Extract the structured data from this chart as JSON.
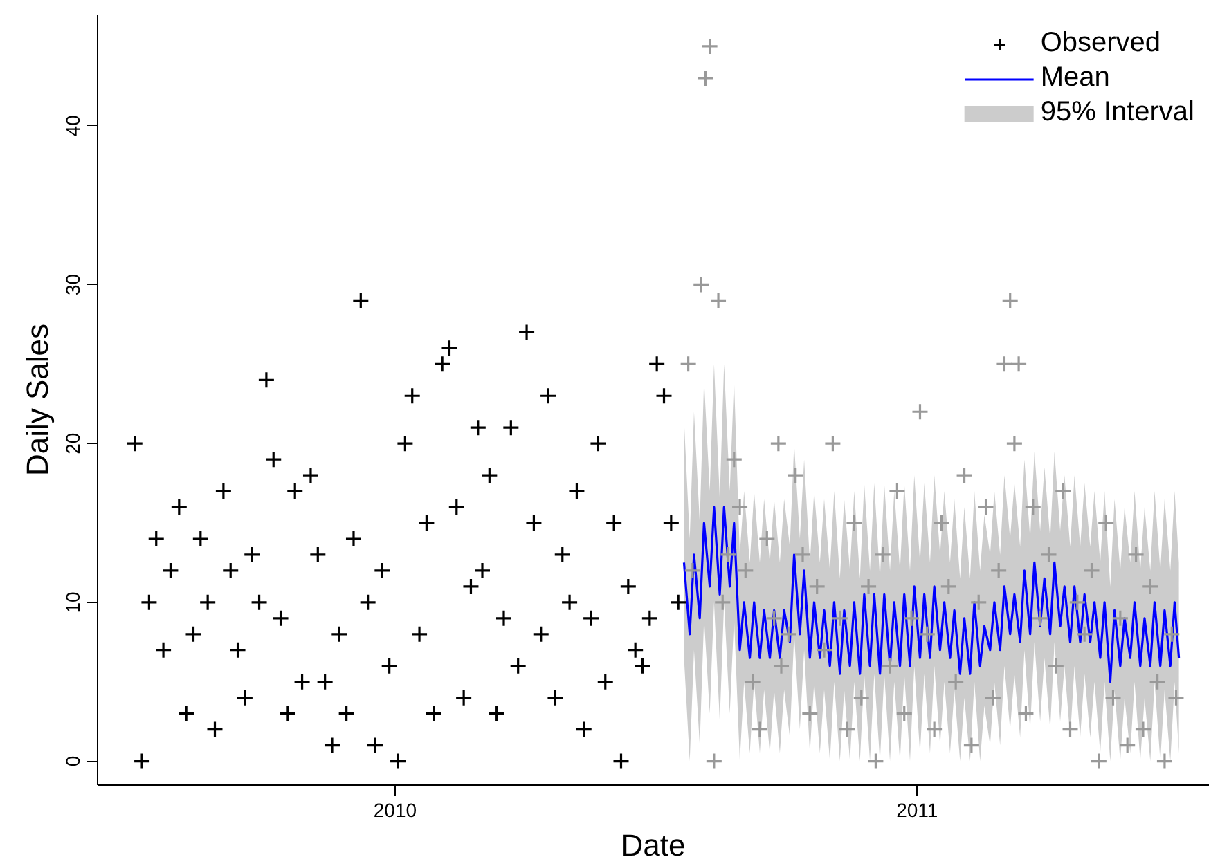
{
  "chart_data": {
    "type": "scatter",
    "xlabel": "Date",
    "ylabel": "Daily Sales",
    "xlim": [
      "2009-06-07",
      "2011-07-24"
    ],
    "ylim": [
      -1.5,
      47
    ],
    "xticks": [
      {
        "value": "2010-01-01",
        "label": "2010"
      },
      {
        "value": "2011-01-01",
        "label": "2011"
      }
    ],
    "yticks": [
      0,
      10,
      20,
      30,
      40
    ],
    "grid": false,
    "legend": "top right",
    "marker": "cross",
    "series": [
      {
        "name": "Mean",
        "type": "line",
        "color": "#0000ff",
        "line_style": "solid",
        "marker": "none",
        "x": [
          "2010-07-22",
          "2010-07-26",
          "2010-07-29",
          "2010-08-02",
          "2010-08-05",
          "2010-08-09",
          "2010-08-12",
          "2010-08-16",
          "2010-08-19",
          "2010-08-23",
          "2010-08-26",
          "2010-08-30",
          "2010-09-02",
          "2010-09-06",
          "2010-09-09",
          "2010-09-13",
          "2010-09-16",
          "2010-09-20",
          "2010-09-23",
          "2010-09-27",
          "2010-09-30",
          "2010-10-04",
          "2010-10-07",
          "2010-10-11",
          "2010-10-14",
          "2010-10-18",
          "2010-10-21",
          "2010-10-25",
          "2010-10-28",
          "2010-11-01",
          "2010-11-04",
          "2010-11-08",
          "2010-11-11",
          "2010-11-15",
          "2010-11-18",
          "2010-11-22",
          "2010-11-25",
          "2010-11-29",
          "2010-12-02",
          "2010-12-06",
          "2010-12-09",
          "2010-12-13",
          "2010-12-16",
          "2010-12-20",
          "2010-12-23",
          "2010-12-27",
          "2010-12-30",
          "2011-01-03",
          "2011-01-06",
          "2011-01-10",
          "2011-01-13",
          "2011-01-17",
          "2011-01-20",
          "2011-01-24",
          "2011-01-27",
          "2011-01-31",
          "2011-02-03",
          "2011-02-07",
          "2011-02-10",
          "2011-02-14",
          "2011-02-17",
          "2011-02-21",
          "2011-02-24",
          "2011-02-28",
          "2011-03-03",
          "2011-03-07",
          "2011-03-10",
          "2011-03-14",
          "2011-03-17",
          "2011-03-21",
          "2011-03-24",
          "2011-03-28",
          "2011-03-31",
          "2011-04-04",
          "2011-04-07",
          "2011-04-11",
          "2011-04-14",
          "2011-04-18",
          "2011-04-21",
          "2011-04-25",
          "2011-04-28",
          "2011-05-02",
          "2011-05-05",
          "2011-05-09",
          "2011-05-12",
          "2011-05-16",
          "2011-05-19",
          "2011-05-23",
          "2011-05-26",
          "2011-05-30",
          "2011-06-02",
          "2011-06-06",
          "2011-06-09",
          "2011-06-13",
          "2011-06-16",
          "2011-06-20",
          "2011-06-23",
          "2011-06-27",
          "2011-06-30",
          "2011-07-03"
        ],
        "upper": [
          21.5,
          14,
          22,
          15,
          24,
          17,
          25,
          16.5,
          25,
          17,
          24,
          13,
          17,
          12.5,
          17,
          12.5,
          16.5,
          12.5,
          16.5,
          12.5,
          16.5,
          13.5,
          20,
          14,
          19,
          12.5,
          17,
          12.5,
          16.5,
          12,
          17,
          11.5,
          16.5,
          12,
          17,
          11.5,
          17.5,
          12,
          17.5,
          11.5,
          17.5,
          12,
          17,
          12,
          17.5,
          12,
          18,
          12.5,
          17.5,
          12.5,
          18,
          13,
          17,
          12.5,
          16.5,
          11.5,
          16,
          11.5,
          17,
          12,
          15.5,
          13,
          17,
          13,
          18,
          14,
          17.5,
          13.5,
          19,
          14,
          19.5,
          14.5,
          18.5,
          14,
          19.5,
          14.5,
          18,
          13.5,
          18,
          13.5,
          17.5,
          13.5,
          17,
          12.5,
          17,
          11,
          16.5,
          12,
          16,
          12.5,
          17,
          12,
          16,
          12,
          17,
          12,
          16.5,
          12,
          17,
          12.5
        ],
        "lower": [
          6.5,
          0,
          7,
          1,
          9,
          3,
          10,
          2.5,
          10,
          3,
          9,
          0,
          5,
          0.5,
          5,
          0.5,
          4.5,
          0.5,
          4.5,
          0.5,
          4.5,
          1.5,
          8,
          2,
          7,
          0.5,
          5,
          0.5,
          4.5,
          0,
          5,
          0,
          4.5,
          0,
          5,
          0,
          5.5,
          0,
          5.5,
          0,
          5.5,
          0,
          5,
          0,
          5.5,
          0,
          6,
          0.5,
          5.5,
          0.5,
          6,
          1,
          5,
          0.5,
          4.5,
          0,
          4,
          0,
          5,
          0,
          3.5,
          1,
          5,
          1,
          6,
          2,
          5.5,
          1.5,
          7,
          2,
          7.5,
          2.5,
          6.5,
          2,
          7.5,
          2.5,
          6,
          1.5,
          6,
          1.5,
          5.5,
          1.5,
          5,
          0.5,
          5,
          0,
          4.5,
          0,
          4,
          0.5,
          5,
          0,
          4,
          0,
          5,
          0,
          4.5,
          0,
          5,
          0.5
        ],
        "values": [
          12.5,
          8,
          13,
          9,
          15,
          11,
          16,
          10.5,
          16,
          11,
          15,
          7,
          10,
          6.5,
          10,
          6.5,
          9.5,
          6.5,
          9.5,
          6.5,
          9.5,
          7.5,
          13,
          8,
          12,
          6.5,
          10,
          6.5,
          9.5,
          6,
          10,
          5.5,
          9.5,
          6,
          10,
          5.5,
          10.5,
          6,
          10.5,
          5.5,
          10.5,
          6,
          10,
          6,
          10.5,
          6,
          11,
          6.5,
          10.5,
          6.5,
          11,
          7,
          10,
          6.5,
          9.5,
          5.5,
          9,
          5.5,
          10,
          6,
          8.5,
          7,
          10,
          7,
          11,
          8,
          10.5,
          7.5,
          12,
          8,
          12.5,
          8.5,
          11.5,
          8,
          12.5,
          8.5,
          11,
          7.5,
          11,
          7.5,
          10.5,
          7.5,
          10,
          6.5,
          10,
          5,
          9.5,
          6,
          9,
          6.5,
          10,
          6,
          9,
          6,
          10,
          6,
          9.5,
          6,
          10,
          6.5
        ]
      },
      {
        "color": "#999999",
        "x": [
          "2010-07-25",
          "2010-07-28",
          "2010-08-03",
          "2010-08-06",
          "2010-08-09",
          "2010-08-12",
          "2010-08-15",
          "2010-08-18",
          "2010-08-22",
          "2010-08-26",
          "2010-08-30",
          "2010-09-03",
          "2010-09-08",
          "2010-09-13",
          "2010-09-18",
          "2010-09-23",
          "2010-09-26",
          "2010-09-28",
          "2010-10-03",
          "2010-10-08",
          "2010-10-13",
          "2010-10-18",
          "2010-10-23",
          "2010-10-28",
          "2010-11-03",
          "2010-11-08",
          "2010-11-13",
          "2010-11-18",
          "2010-11-23",
          "2010-11-28",
          "2010-12-03",
          "2010-12-08",
          "2010-12-13",
          "2010-12-18",
          "2010-12-23",
          "2010-12-28",
          "2011-01-03",
          "2011-01-08",
          "2011-01-13",
          "2011-01-18",
          "2011-01-23",
          "2011-01-28",
          "2011-02-03",
          "2011-02-08",
          "2011-02-13",
          "2011-02-18",
          "2011-02-23",
          "2011-02-27",
          "2011-03-03",
          "2011-03-07",
          "2011-03-10",
          "2011-03-13",
          "2011-03-18",
          "2011-03-23",
          "2011-03-28",
          "2011-04-03",
          "2011-04-08",
          "2011-04-13",
          "2011-04-18",
          "2011-04-23",
          "2011-04-28",
          "2011-05-03",
          "2011-05-08",
          "2011-05-13",
          "2011-05-18",
          "2011-05-23",
          "2011-05-28",
          "2011-06-03",
          "2011-06-08",
          "2011-06-13",
          "2011-06-18",
          "2011-06-23",
          "2011-06-28",
          "2011-07-01"
        ],
        "values": [
          25,
          12,
          30,
          43,
          45,
          0,
          29,
          10,
          13,
          19,
          16,
          12,
          5,
          2,
          14,
          9,
          20,
          6,
          8,
          18,
          13,
          3,
          11,
          7,
          20,
          9,
          2,
          15,
          4,
          11,
          0,
          13,
          6,
          17,
          3,
          9,
          22,
          8,
          2,
          15,
          11,
          5,
          18,
          1,
          10,
          16,
          4,
          12,
          25,
          29,
          20,
          25,
          3,
          16,
          9,
          13,
          6,
          17,
          2,
          10,
          8,
          12,
          0,
          15,
          4,
          9,
          1,
          13,
          2,
          11,
          5,
          0,
          8,
          4
        ]
      },
      {
        "name": "Observed",
        "color": "#000000",
        "x": [
          "2009-07-03",
          "2009-07-08",
          "2009-07-13",
          "2009-07-18",
          "2009-07-23",
          "2009-07-28",
          "2009-08-03",
          "2009-08-08",
          "2009-08-13",
          "2009-08-18",
          "2009-08-23",
          "2009-08-28",
          "2009-09-03",
          "2009-09-08",
          "2009-09-13",
          "2009-09-18",
          "2009-09-23",
          "2009-09-28",
          "2009-10-03",
          "2009-10-08",
          "2009-10-13",
          "2009-10-18",
          "2009-10-23",
          "2009-10-28",
          "2009-11-03",
          "2009-11-08",
          "2009-11-13",
          "2009-11-18",
          "2009-11-23",
          "2009-11-28",
          "2009-12-03",
          "2009-12-08",
          "2009-12-13",
          "2009-12-18",
          "2009-12-23",
          "2009-12-28",
          "2010-01-03",
          "2010-01-08",
          "2010-01-13",
          "2010-01-18",
          "2010-01-23",
          "2010-01-28",
          "2010-02-03",
          "2010-02-08",
          "2010-02-13",
          "2010-02-18",
          "2010-02-23",
          "2010-02-28",
          "2010-03-03",
          "2010-03-08",
          "2010-03-13",
          "2010-03-18",
          "2010-03-23",
          "2010-03-28",
          "2010-04-03",
          "2010-04-08",
          "2010-04-13",
          "2010-04-18",
          "2010-04-23",
          "2010-04-28",
          "2010-05-03",
          "2010-05-08",
          "2010-05-13",
          "2010-05-18",
          "2010-05-23",
          "2010-05-28",
          "2010-06-03",
          "2010-06-08",
          "2010-06-13",
          "2010-06-18",
          "2010-06-23",
          "2010-06-28",
          "2010-07-03",
          "2010-07-08",
          "2010-07-13",
          "2010-07-18"
        ],
        "values": [
          20,
          0,
          10,
          14,
          7,
          12,
          16,
          3,
          8,
          14,
          10,
          2,
          17,
          12,
          7,
          4,
          13,
          10,
          24,
          19,
          9,
          3,
          17,
          5,
          18,
          13,
          5,
          1,
          8,
          3,
          14,
          29,
          10,
          1,
          12,
          6,
          0,
          20,
          23,
          8,
          15,
          3,
          25,
          26,
          16,
          4,
          11,
          21,
          12,
          18,
          3,
          9,
          21,
          6,
          27,
          15,
          8,
          23,
          4,
          13,
          10,
          17,
          2,
          9,
          20,
          5,
          15,
          0,
          11,
          7,
          6,
          9,
          25,
          23,
          15,
          10
        ]
      }
    ],
    "annotations": [
      "95% Interval"
    ]
  }
}
